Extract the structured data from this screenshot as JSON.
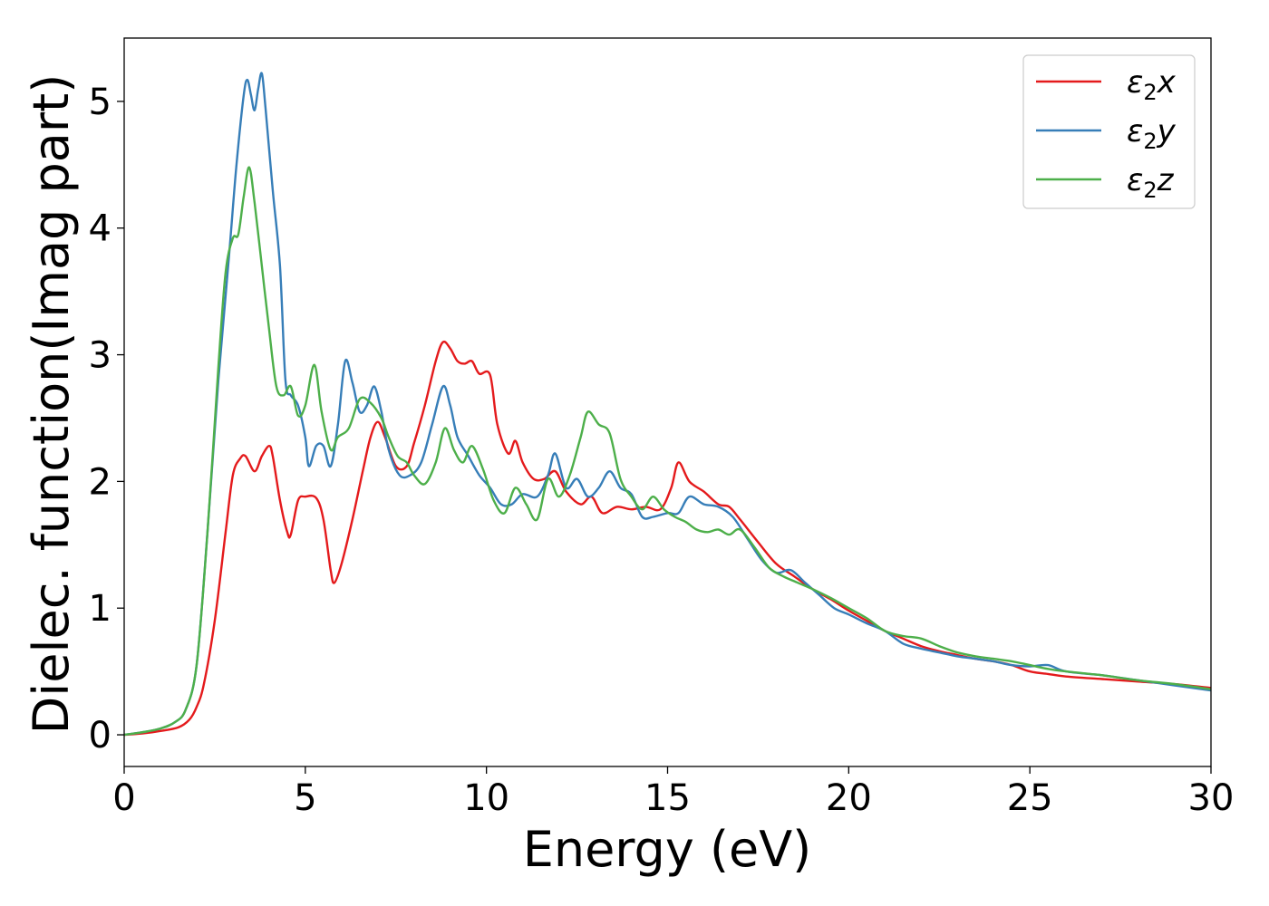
{
  "chart_data": {
    "type": "line",
    "xlabel": "Energy (eV)",
    "ylabel": "Dielec. function(Imag part)",
    "xlim": [
      0,
      30
    ],
    "ylim": [
      -0.25,
      5.5
    ],
    "xticks": [
      0,
      5,
      10,
      15,
      20,
      25,
      30
    ],
    "yticks": [
      0,
      1,
      2,
      3,
      4,
      5
    ],
    "grid": false,
    "legend_position": "top-right",
    "series": [
      {
        "name": "ε₂x",
        "legend_base": "ε",
        "legend_sub": "2",
        "legend_var": "x",
        "color": "#e41a1c",
        "points": [
          [
            0,
            0
          ],
          [
            0.5,
            0.01
          ],
          [
            1,
            0.03
          ],
          [
            1.5,
            0.06
          ],
          [
            1.8,
            0.12
          ],
          [
            2,
            0.22
          ],
          [
            2.2,
            0.4
          ],
          [
            2.5,
            0.9
          ],
          [
            2.8,
            1.6
          ],
          [
            3,
            2.05
          ],
          [
            3.2,
            2.18
          ],
          [
            3.35,
            2.2
          ],
          [
            3.6,
            2.08
          ],
          [
            3.8,
            2.2
          ],
          [
            4,
            2.28
          ],
          [
            4.1,
            2.2
          ],
          [
            4.3,
            1.85
          ],
          [
            4.5,
            1.6
          ],
          [
            4.6,
            1.58
          ],
          [
            4.8,
            1.85
          ],
          [
            5,
            1.88
          ],
          [
            5.3,
            1.87
          ],
          [
            5.5,
            1.7
          ],
          [
            5.7,
            1.3
          ],
          [
            5.8,
            1.2
          ],
          [
            6,
            1.35
          ],
          [
            6.3,
            1.7
          ],
          [
            6.6,
            2.1
          ],
          [
            6.8,
            2.35
          ],
          [
            7,
            2.47
          ],
          [
            7.2,
            2.35
          ],
          [
            7.5,
            2.12
          ],
          [
            7.8,
            2.12
          ],
          [
            8,
            2.3
          ],
          [
            8.3,
            2.6
          ],
          [
            8.6,
            2.95
          ],
          [
            8.8,
            3.1
          ],
          [
            9,
            3.05
          ],
          [
            9.2,
            2.95
          ],
          [
            9.4,
            2.93
          ],
          [
            9.6,
            2.95
          ],
          [
            9.8,
            2.85
          ],
          [
            10.1,
            2.84
          ],
          [
            10.3,
            2.45
          ],
          [
            10.6,
            2.22
          ],
          [
            10.8,
            2.32
          ],
          [
            11,
            2.15
          ],
          [
            11.3,
            2.02
          ],
          [
            11.6,
            2.02
          ],
          [
            11.9,
            2.08
          ],
          [
            12.2,
            1.92
          ],
          [
            12.6,
            1.82
          ],
          [
            12.9,
            1.88
          ],
          [
            13.2,
            1.75
          ],
          [
            13.6,
            1.8
          ],
          [
            14,
            1.78
          ],
          [
            14.4,
            1.8
          ],
          [
            14.8,
            1.78
          ],
          [
            15.1,
            1.95
          ],
          [
            15.3,
            2.15
          ],
          [
            15.6,
            2.0
          ],
          [
            16,
            1.92
          ],
          [
            16.4,
            1.82
          ],
          [
            16.7,
            1.8
          ],
          [
            17,
            1.7
          ],
          [
            17.5,
            1.52
          ],
          [
            18,
            1.35
          ],
          [
            18.5,
            1.25
          ],
          [
            19,
            1.15
          ],
          [
            19.5,
            1.07
          ],
          [
            20,
            0.98
          ],
          [
            20.5,
            0.9
          ],
          [
            21,
            0.82
          ],
          [
            21.5,
            0.76
          ],
          [
            22,
            0.7
          ],
          [
            22.5,
            0.66
          ],
          [
            23,
            0.63
          ],
          [
            23.5,
            0.6
          ],
          [
            24,
            0.58
          ],
          [
            24.5,
            0.55
          ],
          [
            25,
            0.5
          ],
          [
            25.5,
            0.48
          ],
          [
            26,
            0.46
          ],
          [
            27,
            0.44
          ],
          [
            28,
            0.42
          ],
          [
            29,
            0.4
          ],
          [
            30,
            0.37
          ]
        ]
      },
      {
        "name": "ε₂y",
        "legend_base": "ε",
        "legend_sub": "2",
        "legend_var": "y",
        "color": "#377eb8",
        "points": [
          [
            0,
            0
          ],
          [
            0.5,
            0.02
          ],
          [
            1,
            0.05
          ],
          [
            1.4,
            0.1
          ],
          [
            1.7,
            0.2
          ],
          [
            2,
            0.55
          ],
          [
            2.3,
            1.6
          ],
          [
            2.6,
            2.8
          ],
          [
            2.9,
            3.8
          ],
          [
            3.1,
            4.5
          ],
          [
            3.3,
            5.05
          ],
          [
            3.4,
            5.17
          ],
          [
            3.5,
            5.05
          ],
          [
            3.6,
            4.93
          ],
          [
            3.7,
            5.1
          ],
          [
            3.8,
            5.22
          ],
          [
            3.9,
            4.95
          ],
          [
            4.1,
            4.3
          ],
          [
            4.3,
            3.7
          ],
          [
            4.45,
            2.8
          ],
          [
            4.6,
            2.68
          ],
          [
            4.8,
            2.6
          ],
          [
            5,
            2.35
          ],
          [
            5.1,
            2.12
          ],
          [
            5.3,
            2.28
          ],
          [
            5.5,
            2.28
          ],
          [
            5.7,
            2.12
          ],
          [
            5.9,
            2.45
          ],
          [
            6.1,
            2.95
          ],
          [
            6.3,
            2.78
          ],
          [
            6.5,
            2.55
          ],
          [
            6.7,
            2.6
          ],
          [
            6.9,
            2.75
          ],
          [
            7.1,
            2.55
          ],
          [
            7.3,
            2.25
          ],
          [
            7.6,
            2.05
          ],
          [
            7.9,
            2.05
          ],
          [
            8.2,
            2.15
          ],
          [
            8.5,
            2.45
          ],
          [
            8.8,
            2.75
          ],
          [
            9,
            2.6
          ],
          [
            9.2,
            2.35
          ],
          [
            9.5,
            2.2
          ],
          [
            9.8,
            2.05
          ],
          [
            10.1,
            1.95
          ],
          [
            10.4,
            1.82
          ],
          [
            10.7,
            1.82
          ],
          [
            11,
            1.9
          ],
          [
            11.4,
            1.88
          ],
          [
            11.7,
            2.05
          ],
          [
            11.9,
            2.22
          ],
          [
            12.2,
            1.95
          ],
          [
            12.5,
            2.02
          ],
          [
            12.8,
            1.88
          ],
          [
            13.1,
            1.95
          ],
          [
            13.4,
            2.08
          ],
          [
            13.7,
            1.95
          ],
          [
            14,
            1.9
          ],
          [
            14.3,
            1.72
          ],
          [
            14.6,
            1.72
          ],
          [
            15,
            1.75
          ],
          [
            15.3,
            1.75
          ],
          [
            15.6,
            1.88
          ],
          [
            16,
            1.82
          ],
          [
            16.4,
            1.8
          ],
          [
            16.8,
            1.72
          ],
          [
            17.2,
            1.55
          ],
          [
            17.6,
            1.38
          ],
          [
            18,
            1.28
          ],
          [
            18.4,
            1.3
          ],
          [
            18.8,
            1.2
          ],
          [
            19.2,
            1.1
          ],
          [
            19.6,
            1.0
          ],
          [
            20,
            0.95
          ],
          [
            20.5,
            0.88
          ],
          [
            21,
            0.82
          ],
          [
            21.5,
            0.72
          ],
          [
            22,
            0.68
          ],
          [
            22.5,
            0.65
          ],
          [
            23,
            0.62
          ],
          [
            23.5,
            0.6
          ],
          [
            24,
            0.58
          ],
          [
            24.5,
            0.55
          ],
          [
            25,
            0.54
          ],
          [
            25.5,
            0.55
          ],
          [
            26,
            0.5
          ],
          [
            27,
            0.47
          ],
          [
            28,
            0.43
          ],
          [
            29,
            0.39
          ],
          [
            30,
            0.35
          ]
        ]
      },
      {
        "name": "ε₂z",
        "legend_base": "ε",
        "legend_sub": "2",
        "legend_var": "z",
        "color": "#4daf4a",
        "points": [
          [
            0,
            0
          ],
          [
            0.5,
            0.02
          ],
          [
            1,
            0.05
          ],
          [
            1.4,
            0.1
          ],
          [
            1.7,
            0.2
          ],
          [
            2,
            0.55
          ],
          [
            2.3,
            1.6
          ],
          [
            2.6,
            2.9
          ],
          [
            2.8,
            3.65
          ],
          [
            3,
            3.92
          ],
          [
            3.15,
            3.95
          ],
          [
            3.3,
            4.25
          ],
          [
            3.45,
            4.48
          ],
          [
            3.6,
            4.2
          ],
          [
            3.8,
            3.7
          ],
          [
            4,
            3.2
          ],
          [
            4.2,
            2.75
          ],
          [
            4.4,
            2.68
          ],
          [
            4.6,
            2.75
          ],
          [
            4.8,
            2.52
          ],
          [
            5,
            2.6
          ],
          [
            5.25,
            2.92
          ],
          [
            5.45,
            2.55
          ],
          [
            5.7,
            2.25
          ],
          [
            5.9,
            2.35
          ],
          [
            6.2,
            2.42
          ],
          [
            6.5,
            2.65
          ],
          [
            6.8,
            2.62
          ],
          [
            7.1,
            2.5
          ],
          [
            7.3,
            2.35
          ],
          [
            7.55,
            2.2
          ],
          [
            7.8,
            2.15
          ],
          [
            8,
            2.05
          ],
          [
            8.3,
            1.98
          ],
          [
            8.6,
            2.15
          ],
          [
            8.85,
            2.42
          ],
          [
            9.1,
            2.25
          ],
          [
            9.35,
            2.15
          ],
          [
            9.6,
            2.28
          ],
          [
            9.9,
            2.1
          ],
          [
            10.2,
            1.85
          ],
          [
            10.5,
            1.75
          ],
          [
            10.8,
            1.95
          ],
          [
            11.1,
            1.82
          ],
          [
            11.4,
            1.7
          ],
          [
            11.7,
            2.02
          ],
          [
            12,
            1.88
          ],
          [
            12.3,
            2.05
          ],
          [
            12.6,
            2.35
          ],
          [
            12.8,
            2.55
          ],
          [
            13.1,
            2.45
          ],
          [
            13.4,
            2.38
          ],
          [
            13.7,
            2.02
          ],
          [
            14,
            1.88
          ],
          [
            14.3,
            1.78
          ],
          [
            14.6,
            1.88
          ],
          [
            14.9,
            1.78
          ],
          [
            15.2,
            1.72
          ],
          [
            15.5,
            1.68
          ],
          [
            15.8,
            1.62
          ],
          [
            16.1,
            1.6
          ],
          [
            16.4,
            1.62
          ],
          [
            16.7,
            1.58
          ],
          [
            17,
            1.62
          ],
          [
            17.4,
            1.48
          ],
          [
            17.8,
            1.32
          ],
          [
            18.2,
            1.25
          ],
          [
            18.6,
            1.2
          ],
          [
            19,
            1.15
          ],
          [
            19.5,
            1.08
          ],
          [
            20,
            1.0
          ],
          [
            20.5,
            0.92
          ],
          [
            21,
            0.82
          ],
          [
            21.5,
            0.78
          ],
          [
            22,
            0.76
          ],
          [
            22.5,
            0.7
          ],
          [
            23,
            0.65
          ],
          [
            23.5,
            0.62
          ],
          [
            24,
            0.6
          ],
          [
            24.5,
            0.58
          ],
          [
            25,
            0.55
          ],
          [
            25.5,
            0.52
          ],
          [
            26,
            0.5
          ],
          [
            27,
            0.47
          ],
          [
            28,
            0.43
          ],
          [
            29,
            0.4
          ],
          [
            30,
            0.36
          ]
        ]
      }
    ]
  }
}
